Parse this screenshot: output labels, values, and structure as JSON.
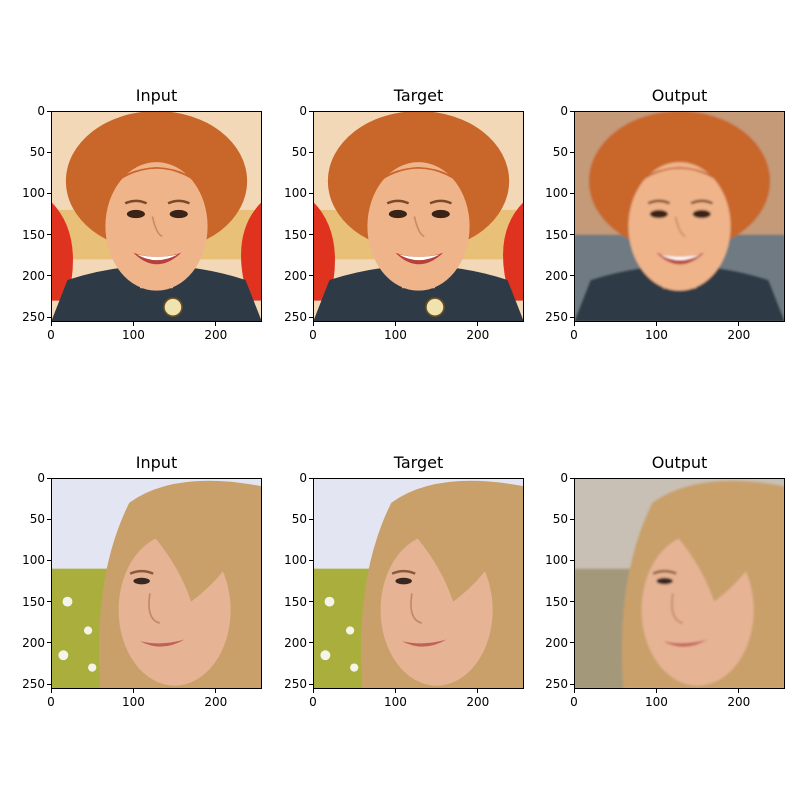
{
  "figure": {
    "axis_ticks": [
      "0",
      "50",
      "100",
      "150",
      "200",
      "250"
    ],
    "x_ticks": [
      "0",
      "100",
      "200"
    ],
    "rows": [
      {
        "subject": "red-haired-woman",
        "panels": [
          {
            "title": "Input",
            "kind": "photo"
          },
          {
            "title": "Target",
            "kind": "photo"
          },
          {
            "title": "Output",
            "kind": "generated"
          }
        ]
      },
      {
        "subject": "blonde-woman",
        "panels": [
          {
            "title": "Input",
            "kind": "photo"
          },
          {
            "title": "Target",
            "kind": "photo"
          },
          {
            "title": "Output",
            "kind": "generated"
          }
        ]
      }
    ]
  },
  "colors": {
    "row1_hair": "#c9662a",
    "row1_skin": "#efb48a",
    "row1_jacket": "#2e3a46",
    "row1_red_hair": "#e0331f",
    "row2_hair": "#c9a06a",
    "row2_skin": "#e6b394",
    "row2_background_top": "#e3e6f2",
    "row2_foliage": "#a9ae3c"
  }
}
